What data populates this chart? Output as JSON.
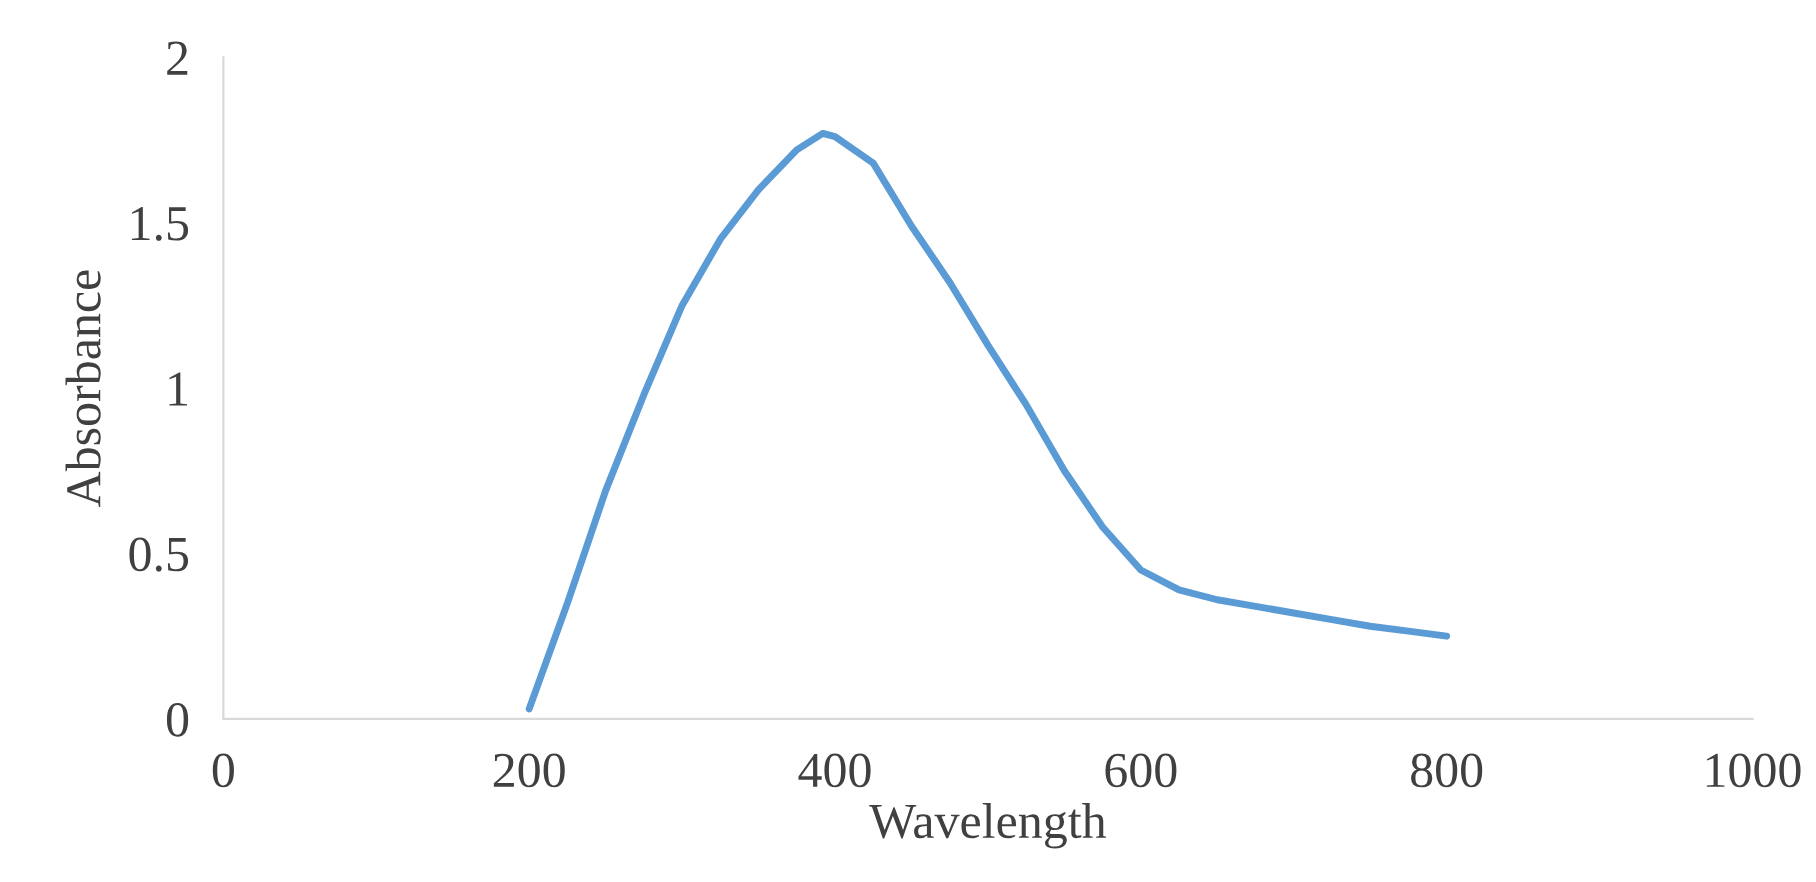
{
  "chart_data": {
    "type": "line",
    "xlabel": "Wavelength",
    "ylabel": "Absorbance",
    "x": [
      200,
      225,
      250,
      275,
      300,
      325,
      350,
      375,
      392,
      400,
      425,
      450,
      475,
      500,
      525,
      550,
      575,
      600,
      625,
      650,
      675,
      700,
      725,
      750,
      775,
      800
    ],
    "series": [
      {
        "color": "#5b9bd5",
        "values": [
          0.03,
          0.35,
          0.69,
          0.98,
          1.25,
          1.45,
          1.6,
          1.72,
          1.77,
          1.76,
          1.68,
          1.49,
          1.32,
          1.13,
          0.95,
          0.75,
          0.58,
          0.45,
          0.39,
          0.36,
          0.34,
          0.32,
          0.3,
          0.28,
          0.265,
          0.25
        ]
      }
    ],
    "xlim": [
      0,
      1000
    ],
    "xticks": [
      0,
      200,
      400,
      600,
      800,
      1000
    ],
    "ylim": [
      0,
      2
    ],
    "yticks": [
      0,
      0.5,
      1,
      1.5,
      2
    ],
    "grid": false,
    "legend": false,
    "marker": "none",
    "line_style": "solid"
  }
}
